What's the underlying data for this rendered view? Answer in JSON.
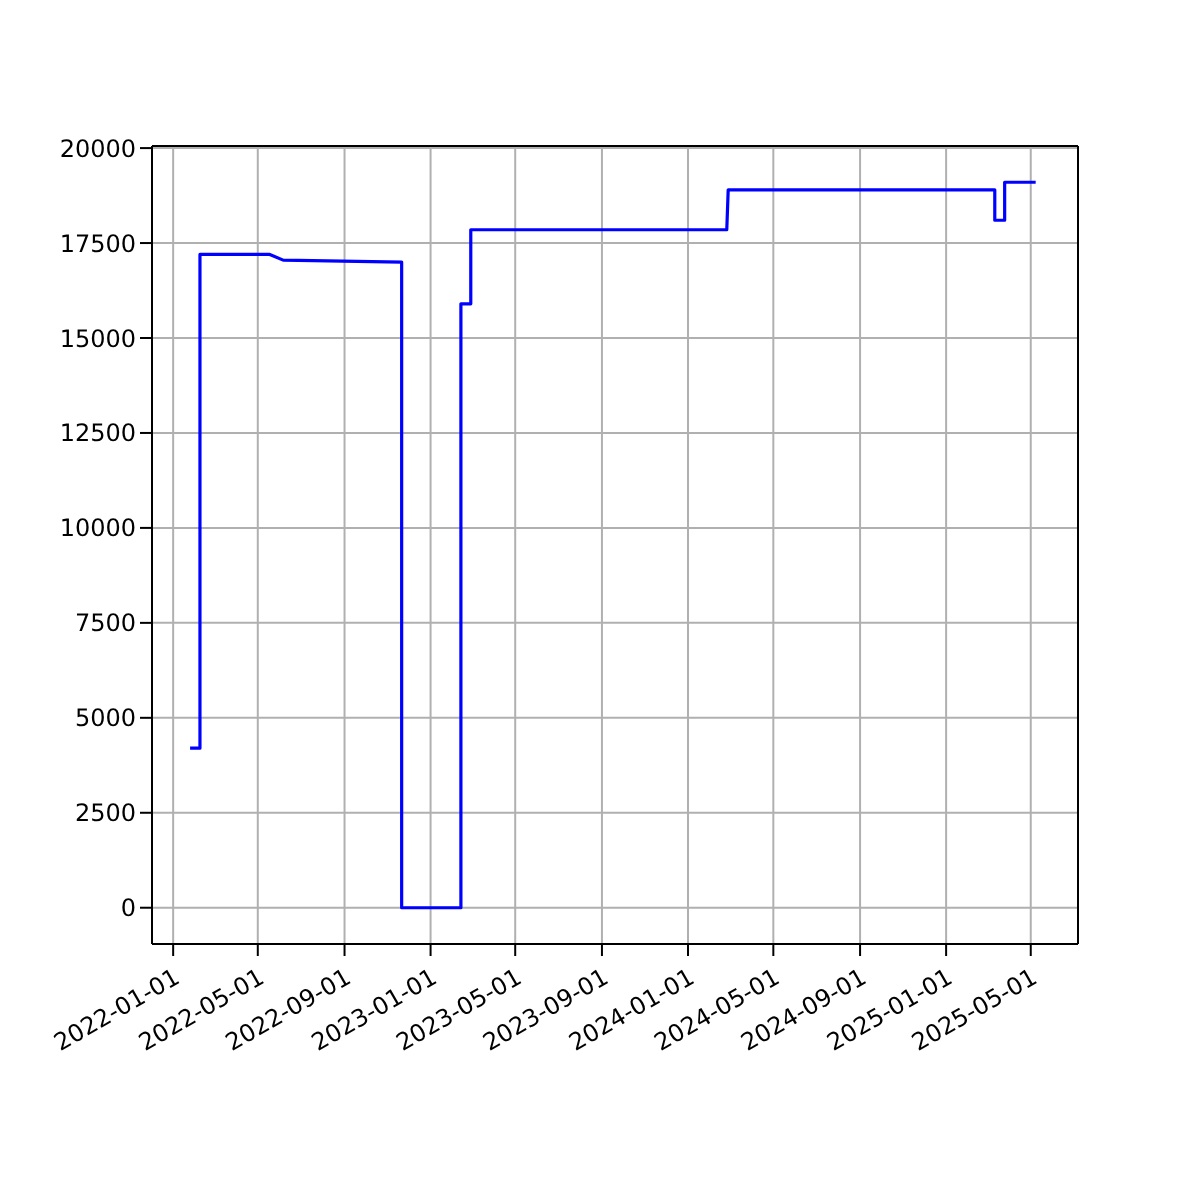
{
  "chart_data": {
    "type": "line",
    "x": [
      "2022-01-25",
      "2022-02-08",
      "2022-02-08",
      "2022-05-18",
      "2022-06-06",
      "2022-11-21",
      "2022-11-21",
      "2023-02-13",
      "2023-02-13",
      "2023-02-27",
      "2023-02-27",
      "2024-02-25",
      "2024-02-27",
      "2025-03-11",
      "2025-03-11",
      "2025-03-25",
      "2025-03-25",
      "2025-05-08"
    ],
    "series": [
      {
        "color": "#0000ff",
        "values": [
          4200,
          4200,
          17200,
          17200,
          17050,
          17000,
          0,
          0,
          15900,
          15900,
          17850,
          17850,
          18900,
          18900,
          18100,
          18100,
          19100,
          19100
        ]
      }
    ],
    "xlim": [
      "2021-12-02",
      "2025-07-07"
    ],
    "xticks": [
      "2022-01-01",
      "2022-05-01",
      "2022-09-01",
      "2023-01-01",
      "2023-05-01",
      "2023-09-01",
      "2024-01-01",
      "2024-05-01",
      "2024-09-01",
      "2025-01-01",
      "2025-05-01"
    ],
    "ylim": [
      -955,
      20055
    ],
    "yticks": [
      0,
      2500,
      5000,
      7500,
      10000,
      12500,
      15000,
      17500,
      20000
    ],
    "grid": true,
    "legend": false,
    "marker": "none",
    "line_style": "solid"
  }
}
